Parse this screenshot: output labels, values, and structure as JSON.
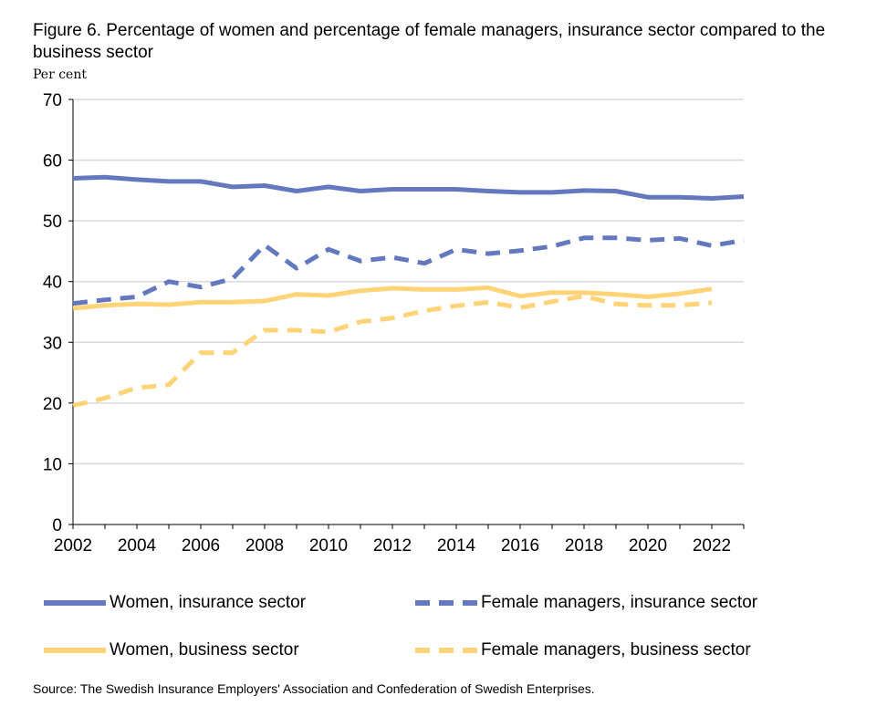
{
  "chart_data": {
    "type": "line",
    "title": "Figure 6. Percentage of women and percentage of female managers, insurance sector compared to the business sector",
    "ylabel": "Per cent",
    "xlabel": "",
    "ylim": [
      0,
      70
    ],
    "yticks": [
      0,
      10,
      20,
      30,
      40,
      50,
      60,
      70
    ],
    "xlim": [
      2002,
      2023
    ],
    "xticks": [
      2002,
      2004,
      2006,
      2008,
      2010,
      2012,
      2014,
      2016,
      2018,
      2020,
      2022
    ],
    "grid": true,
    "legend_placement": "bottom",
    "x": [
      2002,
      2003,
      2004,
      2005,
      2006,
      2007,
      2008,
      2009,
      2010,
      2011,
      2012,
      2013,
      2014,
      2015,
      2016,
      2017,
      2018,
      2019,
      2020,
      2021,
      2022,
      2023
    ],
    "series": [
      {
        "name": "Women, insurance sector",
        "color": "#6478c0",
        "dash": false,
        "values": [
          57.0,
          57.2,
          56.8,
          56.5,
          56.5,
          55.6,
          55.8,
          54.9,
          55.6,
          54.9,
          55.2,
          55.2,
          55.2,
          54.9,
          54.7,
          54.7,
          55.0,
          54.9,
          53.9,
          53.9,
          53.7,
          54.0
        ]
      },
      {
        "name": "Female managers, insurance sector",
        "color": "#6478c0",
        "dash": true,
        "values": [
          36.4,
          37.0,
          37.5,
          40.0,
          39.1,
          40.5,
          46.0,
          42.2,
          45.3,
          43.4,
          44.0,
          43.0,
          45.3,
          44.6,
          45.1,
          45.8,
          47.2,
          47.2,
          46.8,
          47.1,
          45.9,
          46.8
        ]
      },
      {
        "name": "Women, business sector",
        "color": "#ffd478",
        "dash": false,
        "values": [
          35.6,
          36.1,
          36.3,
          36.2,
          36.6,
          36.6,
          36.8,
          37.9,
          37.7,
          38.5,
          38.9,
          38.7,
          38.7,
          39.0,
          37.6,
          38.2,
          38.2,
          37.9,
          37.5,
          38.0,
          38.8,
          null
        ]
      },
      {
        "name": "Female managers, business sector",
        "color": "#ffd478",
        "dash": true,
        "values": [
          19.6,
          20.8,
          22.5,
          23.0,
          28.3,
          28.3,
          32.0,
          32.0,
          31.7,
          33.4,
          34.0,
          35.2,
          36.0,
          36.6,
          35.7,
          36.7,
          37.6,
          36.3,
          36.1,
          36.1,
          36.5,
          null
        ]
      }
    ],
    "source": "Source: The Swedish Insurance Employers' Association and Confederation of Swedish Enterprises."
  }
}
